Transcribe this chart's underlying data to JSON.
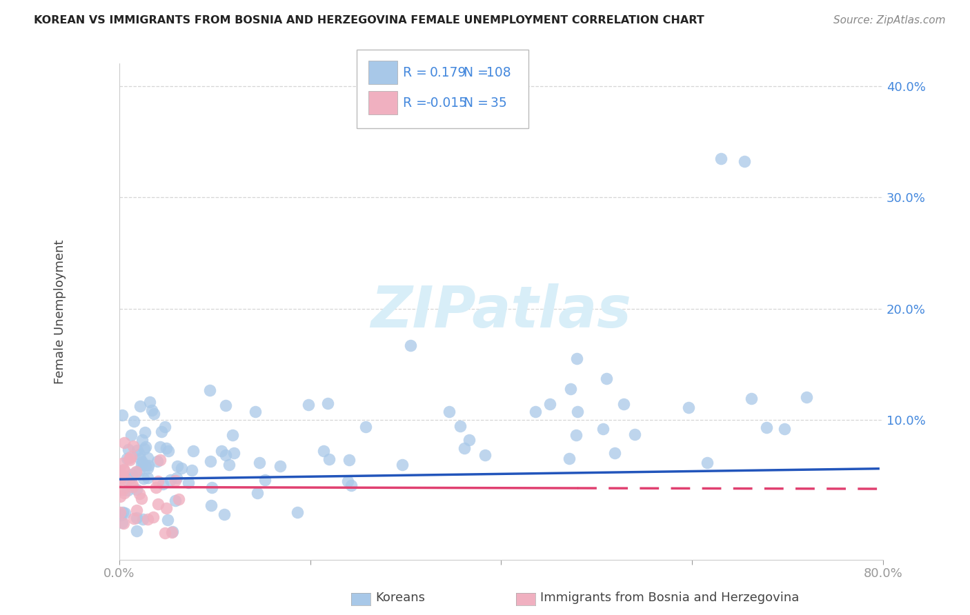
{
  "title": "KOREAN VS IMMIGRANTS FROM BOSNIA AND HERZEGOVINA FEMALE UNEMPLOYMENT CORRELATION CHART",
  "source": "Source: ZipAtlas.com",
  "ylabel": "Female Unemployment",
  "xlim": [
    0.0,
    0.8
  ],
  "ylim": [
    -0.025,
    0.42
  ],
  "x_ticks": [
    0.0,
    0.2,
    0.4,
    0.6,
    0.8
  ],
  "x_tick_labels": [
    "0.0%",
    "",
    "",
    "",
    "80.0%"
  ],
  "y_ticks": [
    0.0,
    0.1,
    0.2,
    0.3,
    0.4
  ],
  "y_tick_labels": [
    "",
    "10.0%",
    "20.0%",
    "30.0%",
    "40.0%"
  ],
  "korean_color": "#a8c8e8",
  "korean_line_color": "#2255bb",
  "bosnia_color": "#f0b0c0",
  "bosnia_line_solid_color": "#e04070",
  "background_color": "#ffffff",
  "grid_color": "#cccccc",
  "legend_text_color": "#4488dd",
  "watermark_color": "#d8eef8",
  "legend_R1": "0.179",
  "legend_N1": "108",
  "legend_R2": "-0.015",
  "legend_N2": "35"
}
